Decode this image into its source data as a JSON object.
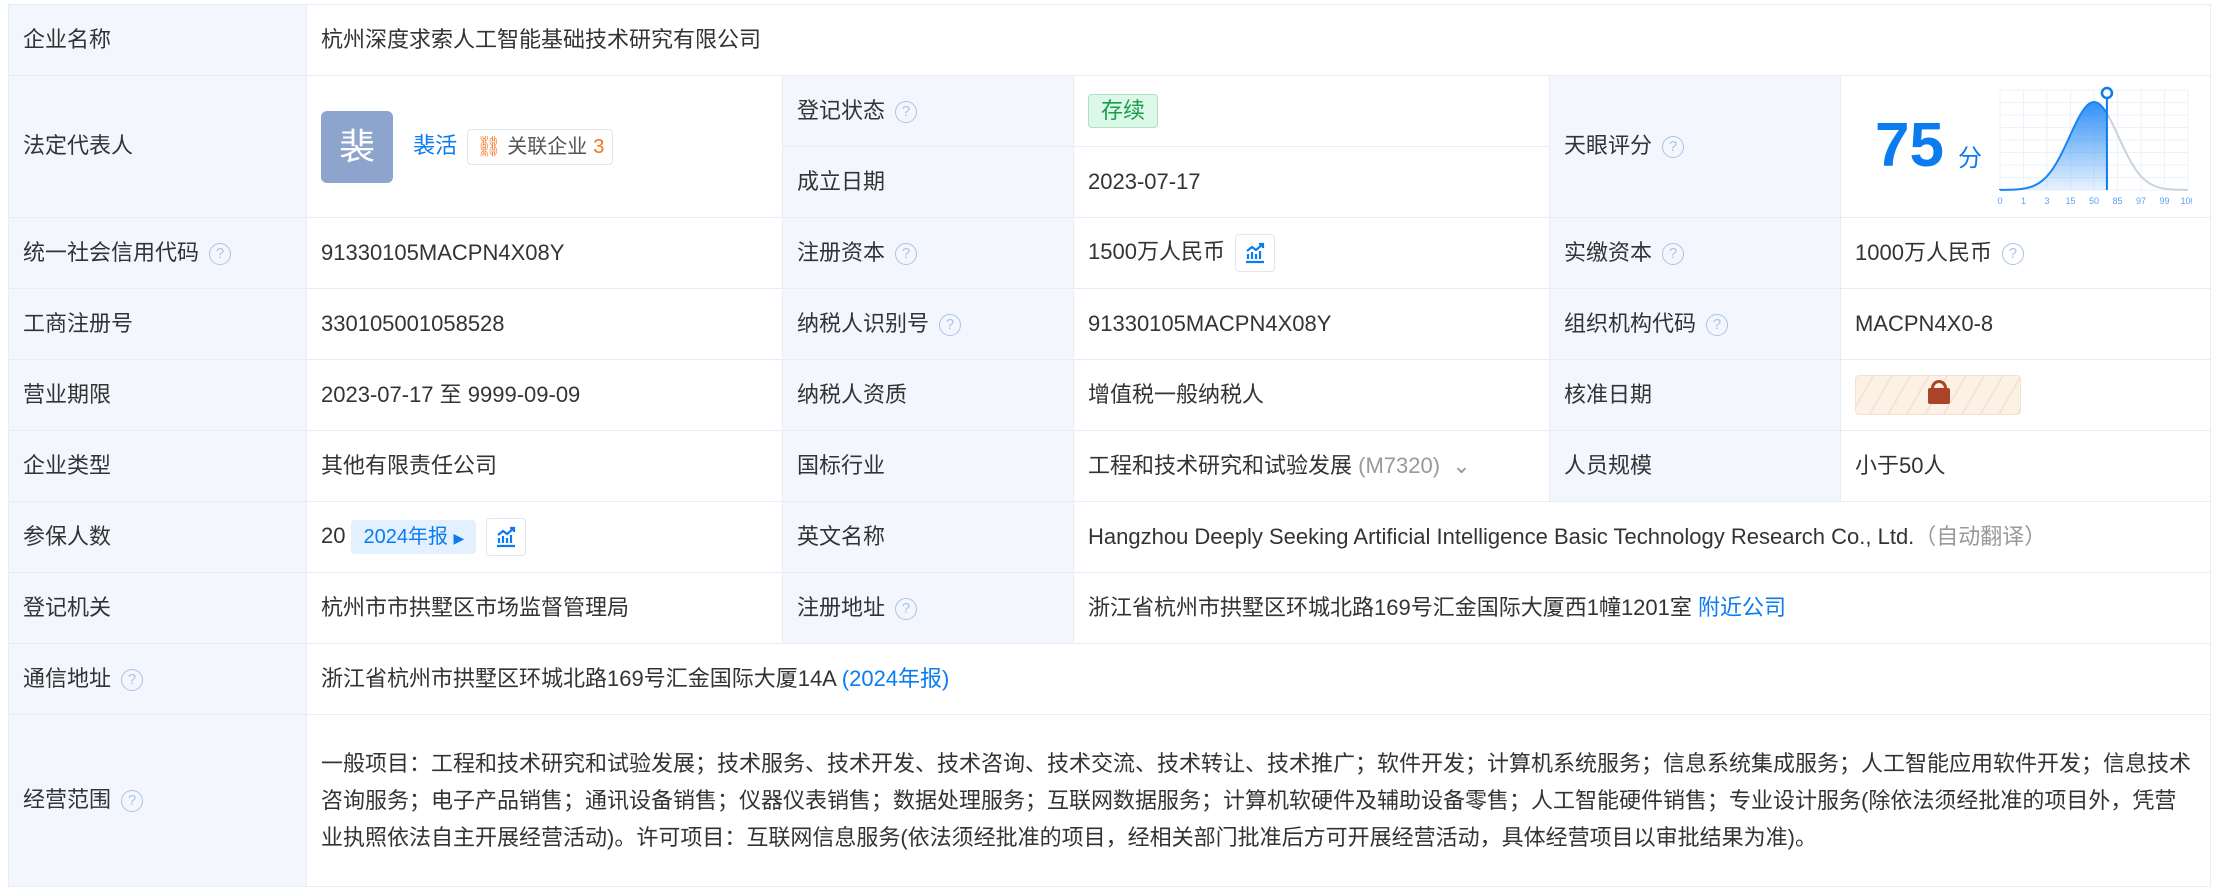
{
  "company_name": {
    "label": "企业名称",
    "value": "杭州深度求索人工智能基础技术研究有限公司"
  },
  "legal_rep": {
    "label": "法定代表人",
    "avatar_char": "裴",
    "name": "裴活",
    "related_label": "关联企业",
    "related_count": "3"
  },
  "reg_status": {
    "label": "登记状态",
    "value": "存续"
  },
  "founded": {
    "label": "成立日期",
    "value": "2023-07-17"
  },
  "tianyan_score": {
    "label": "天眼评分",
    "value": "75",
    "unit": "分"
  },
  "credit_code": {
    "label": "统一社会信用代码",
    "value": "91330105MACPN4X08Y"
  },
  "reg_capital": {
    "label": "注册资本",
    "value": "1500万人民币"
  },
  "paid_capital": {
    "label": "实缴资本",
    "value": "1000万人民币"
  },
  "biz_reg_no": {
    "label": "工商注册号",
    "value": "330105001058528"
  },
  "taxpayer_id": {
    "label": "纳税人识别号",
    "value": "91330105MACPN4X08Y"
  },
  "org_code": {
    "label": "组织机构代码",
    "value": "MACPN4X0-8"
  },
  "term": {
    "label": "营业期限",
    "value": "2023-07-17 至 9999-09-09"
  },
  "tax_qual": {
    "label": "纳税人资质",
    "value": "增值税一般纳税人"
  },
  "approval_date": {
    "label": "核准日期",
    "locked": true
  },
  "company_type": {
    "label": "企业类型",
    "value": "其他有限责任公司"
  },
  "industry": {
    "label": "国标行业",
    "value": "工程和技术研究和试验发展",
    "code": "(M7320)"
  },
  "staff_size": {
    "label": "人员规模",
    "value": "小于50人"
  },
  "insured": {
    "label": "参保人数",
    "value": "20",
    "report": "2024年报"
  },
  "english_name": {
    "label": "英文名称",
    "value": "Hangzhou Deeply Seeking Artificial Intelligence Basic Technology Research Co., Ltd.",
    "note": "（自动翻译）"
  },
  "reg_authority": {
    "label": "登记机关",
    "value": "杭州市市拱墅区市场监督管理局"
  },
  "reg_address": {
    "label": "注册地址",
    "value": "浙江省杭州市拱墅区环城北路169号汇金国际大厦西1幢1201室",
    "link": "附近公司"
  },
  "mail_address": {
    "label": "通信地址",
    "value": "浙江省杭州市拱墅区环城北路169号汇金国际大厦14A",
    "report": "(2024年报)"
  },
  "scope": {
    "label": "经营范围",
    "value": "一般项目：工程和技术研究和试验发展；技术服务、技术开发、技术咨询、技术交流、技术转让、技术推广；软件开发；计算机系统服务；信息系统集成服务；人工智能应用软件开发；信息技术咨询服务；电子产品销售；通讯设备销售；仪器仪表销售；数据处理服务；互联网数据服务；计算机软硬件及辅助设备零售；人工智能硬件销售；专业设计服务(除依法须经批准的项目外，凭营业执照依法自主开展经营活动)。许可项目：互联网信息服务(依法须经批准的项目，经相关部门批准后方可开展经营活动，具体经营项目以审批结果为准)。"
  },
  "chart_data": {
    "type": "area",
    "x_tick_labels": [
      "0",
      "1",
      "3",
      "15",
      "50",
      "85",
      "97",
      "99",
      "100"
    ],
    "marker_position_between": [
      "50",
      "85"
    ],
    "score": 75,
    "colors": {
      "fill": "#1a84f5",
      "marker": "#0a7cf0",
      "rest": "#c8d3df"
    }
  }
}
